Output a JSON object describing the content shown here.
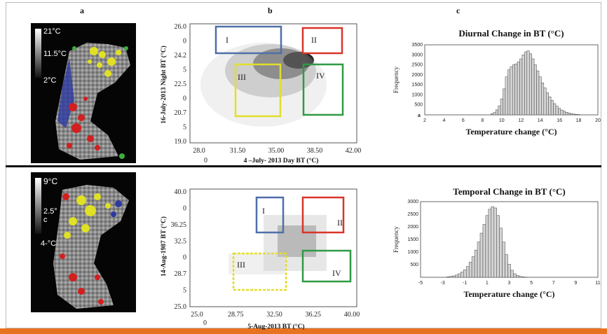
{
  "panel_labels": {
    "a": "a",
    "b": "b",
    "c": "c"
  },
  "top": {
    "map_legend": {
      "max": "21°C",
      "mid": "11.5°C",
      "min": "2°C"
    },
    "scatter": {
      "xlabel": "4 –July- 2013 Day BT (°C)",
      "ylabel": "16-July-2013 Night BT (°C)",
      "xticks": [
        "28.0",
        "31.50",
        "35.00",
        "38.50",
        "42.00"
      ],
      "x_corner": "0",
      "yticks": [
        "26.0",
        "0",
        "24.2",
        "5",
        "22.5",
        "0",
        "20.7",
        "5",
        "19.0"
      ],
      "boxes": [
        {
          "num": "I",
          "color": "#4f6fa8"
        },
        {
          "num": "II",
          "color": "#d9342b"
        },
        {
          "num": "III",
          "color": "#e3de2a"
        },
        {
          "num": "IV",
          "color": "#2f9a44"
        }
      ]
    }
  },
  "bottom": {
    "map_legend": {
      "max": "9°C",
      "mid": "2.5°",
      "mid2": "c",
      "min": "4-°C"
    },
    "scatter": {
      "xlabel": "5-Aug-2013 BT (°C)",
      "ylabel": "14-Aug-1987 BT (°C)",
      "xticks": [
        "25.0",
        "28.75",
        "32.50",
        "36.25",
        "40.00"
      ],
      "x_corner": "0",
      "yticks": [
        "40.0",
        "0",
        "36.25",
        "32.5",
        "0",
        "28.7",
        "5",
        "25.0"
      ],
      "boxes": [
        {
          "num": "I",
          "color": "#4f6fa8"
        },
        {
          "num": "II",
          "color": "#d9342b"
        },
        {
          "num": "III",
          "color": "#e3de2a"
        },
        {
          "num": "IV",
          "color": "#2f9a44"
        }
      ]
    }
  },
  "chart_data": [
    {
      "type": "bar",
      "title": "Diurnal Change in BT (°C)",
      "xlabel": "Temperature change (°C)",
      "ylabel": "Frequency",
      "xlim": [
        2,
        20
      ],
      "ylim": [
        0,
        3500
      ],
      "xticks": [
        "2",
        "4",
        "6",
        "8",
        "10",
        "12",
        "14",
        "16",
        "18",
        "20"
      ],
      "x_corner": "a",
      "yticks": [
        "500",
        "1000",
        "1500",
        "2000",
        "2500",
        "3000",
        "3500"
      ],
      "x": [
        9.0,
        9.25,
        9.5,
        9.75,
        10.0,
        10.25,
        10.5,
        10.75,
        11.0,
        11.25,
        11.5,
        11.75,
        12.0,
        12.25,
        12.5,
        12.75,
        13.0,
        13.25,
        13.5,
        13.75,
        14.0,
        14.25,
        14.5,
        14.75,
        15.0,
        15.25,
        15.5,
        15.75,
        16.0,
        16.25,
        16.5,
        16.75,
        17.0,
        17.25,
        17.5,
        17.75,
        18.0
      ],
      "values": [
        60,
        120,
        250,
        450,
        800,
        1300,
        1900,
        2250,
        2400,
        2500,
        2550,
        2650,
        2800,
        3000,
        3150,
        3200,
        3050,
        2800,
        2500,
        2200,
        1900,
        1600,
        1350,
        1100,
        900,
        720,
        560,
        430,
        320,
        240,
        180,
        130,
        90,
        60,
        40,
        25,
        15
      ]
    },
    {
      "type": "bar",
      "title": "Temporal Change in BT (°C)",
      "xlabel": "Temperature change (°C)",
      "ylabel": "Frequency",
      "xlim": [
        -5,
        11
      ],
      "ylim": [
        0,
        3000
      ],
      "xticks": [
        "-5",
        "-3",
        "-1",
        "1",
        "3",
        "5",
        "7",
        "9",
        "11"
      ],
      "yticks": [
        "500",
        "1000",
        "1500",
        "2000",
        "2500",
        "3000"
      ],
      "x": [
        -2.5,
        -2.25,
        -2.0,
        -1.75,
        -1.5,
        -1.25,
        -1.0,
        -0.75,
        -0.5,
        -0.25,
        0.0,
        0.25,
        0.5,
        0.75,
        1.0,
        1.25,
        1.5,
        1.75,
        2.0,
        2.25,
        2.5,
        2.75,
        3.0,
        3.25,
        3.5,
        3.75,
        4.0,
        4.25,
        4.5
      ],
      "values": [
        20,
        35,
        55,
        90,
        140,
        210,
        300,
        430,
        600,
        820,
        1080,
        1400,
        1750,
        2100,
        2450,
        2700,
        2800,
        2750,
        2450,
        1950,
        1400,
        900,
        520,
        280,
        140,
        70,
        35,
        15,
        8
      ]
    }
  ]
}
